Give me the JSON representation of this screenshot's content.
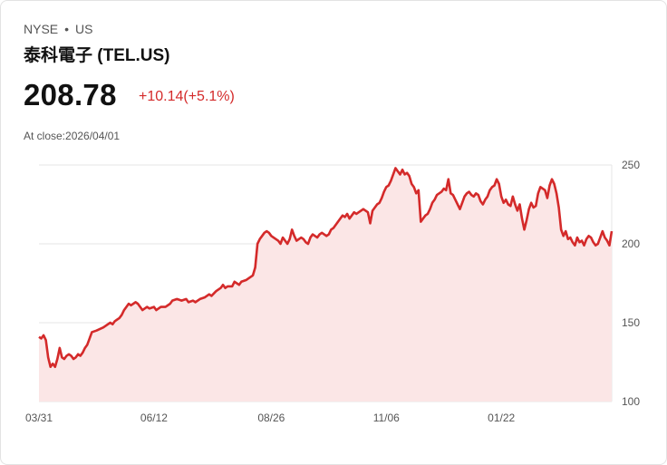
{
  "header": {
    "exchange": "NYSE",
    "separator": "•",
    "region": "US",
    "title": "泰科電子 (TEL.US)",
    "price": "208.78",
    "change": "+10.14(+5.1%)",
    "close_info": "At close:2026/04/01"
  },
  "colors": {
    "line": "#d42a2a",
    "fill": "#fbe6e6",
    "grid": "#e4e4e4",
    "text": "#111111",
    "muted": "#555555"
  },
  "chart_data": {
    "type": "area",
    "title": "泰科電子 (TEL.US)",
    "y_ticks": [
      100,
      150,
      200,
      250
    ],
    "ylim": [
      100,
      250
    ],
    "x_tick_labels": [
      {
        "label": "03/31",
        "index": 0
      },
      {
        "label": "06/12",
        "index": 50
      },
      {
        "label": "08/26",
        "index": 101
      },
      {
        "label": "11/06",
        "index": 151
      },
      {
        "label": "01/22",
        "index": 201
      }
    ],
    "x_count": 250,
    "series": [
      {
        "name": "TEL.US",
        "points": [
          [
            0,
            141
          ],
          [
            1,
            140
          ],
          [
            2,
            142
          ],
          [
            3,
            139
          ],
          [
            4,
            128
          ],
          [
            5,
            122
          ],
          [
            6,
            124
          ],
          [
            7,
            122
          ],
          [
            8,
            127
          ],
          [
            9,
            134
          ],
          [
            10,
            128
          ],
          [
            11,
            127
          ],
          [
            12,
            129
          ],
          [
            13,
            130
          ],
          [
            14,
            129
          ],
          [
            15,
            127
          ],
          [
            16,
            128
          ],
          [
            17,
            130
          ],
          [
            18,
            129
          ],
          [
            19,
            131
          ],
          [
            20,
            134
          ],
          [
            21,
            136
          ],
          [
            22,
            140
          ],
          [
            23,
            144
          ],
          [
            25,
            145
          ],
          [
            28,
            147
          ],
          [
            29,
            148
          ],
          [
            30,
            149
          ],
          [
            31,
            150
          ],
          [
            32,
            149
          ],
          [
            33,
            151
          ],
          [
            35,
            153
          ],
          [
            36,
            155
          ],
          [
            37,
            158
          ],
          [
            38,
            160
          ],
          [
            39,
            162
          ],
          [
            40,
            161
          ],
          [
            42,
            163
          ],
          [
            43,
            162
          ],
          [
            45,
            158
          ],
          [
            47,
            160
          ],
          [
            48,
            159
          ],
          [
            50,
            160
          ],
          [
            51,
            158
          ],
          [
            53,
            160
          ],
          [
            55,
            160
          ],
          [
            57,
            162
          ],
          [
            58,
            164
          ],
          [
            60,
            165
          ],
          [
            62,
            164
          ],
          [
            64,
            165
          ],
          [
            65,
            163
          ],
          [
            67,
            164
          ],
          [
            68,
            163
          ],
          [
            70,
            165
          ],
          [
            72,
            166
          ],
          [
            74,
            168
          ],
          [
            75,
            167
          ],
          [
            77,
            170
          ],
          [
            79,
            172
          ],
          [
            80,
            174
          ],
          [
            81,
            172
          ],
          [
            82,
            173
          ],
          [
            84,
            173
          ],
          [
            85,
            176
          ],
          [
            86,
            175
          ],
          [
            87,
            174
          ],
          [
            88,
            176
          ],
          [
            90,
            177
          ],
          [
            92,
            179
          ],
          [
            93,
            180
          ],
          [
            94,
            185
          ],
          [
            95,
            200
          ],
          [
            96,
            203
          ],
          [
            97,
            205
          ],
          [
            98,
            207
          ],
          [
            99,
            208
          ],
          [
            100,
            207
          ],
          [
            101,
            205
          ],
          [
            102,
            204
          ],
          [
            103,
            203
          ],
          [
            104,
            202
          ],
          [
            105,
            200
          ],
          [
            106,
            204
          ],
          [
            107,
            202
          ],
          [
            108,
            200
          ],
          [
            109,
            203
          ],
          [
            110,
            209
          ],
          [
            111,
            205
          ],
          [
            112,
            202
          ],
          [
            113,
            203
          ],
          [
            114,
            204
          ],
          [
            115,
            203
          ],
          [
            116,
            201
          ],
          [
            117,
            200
          ],
          [
            118,
            204
          ],
          [
            119,
            206
          ],
          [
            120,
            205
          ],
          [
            121,
            204
          ],
          [
            122,
            206
          ],
          [
            123,
            207
          ],
          [
            124,
            206
          ],
          [
            125,
            205
          ],
          [
            126,
            206
          ],
          [
            127,
            209
          ],
          [
            128,
            210
          ],
          [
            129,
            212
          ],
          [
            130,
            214
          ],
          [
            131,
            216
          ],
          [
            132,
            218
          ],
          [
            133,
            217
          ],
          [
            134,
            219
          ],
          [
            135,
            216
          ],
          [
            136,
            218
          ],
          [
            137,
            220
          ],
          [
            138,
            219
          ],
          [
            139,
            220
          ],
          [
            140,
            221
          ],
          [
            141,
            222
          ],
          [
            142,
            221
          ],
          [
            143,
            220
          ],
          [
            144,
            213
          ],
          [
            145,
            221
          ],
          [
            146,
            223
          ],
          [
            147,
            225
          ],
          [
            148,
            226
          ],
          [
            149,
            229
          ],
          [
            150,
            233
          ],
          [
            151,
            236
          ],
          [
            152,
            237
          ],
          [
            153,
            240
          ],
          [
            154,
            244
          ],
          [
            155,
            248
          ],
          [
            156,
            246
          ],
          [
            157,
            244
          ],
          [
            158,
            247
          ],
          [
            159,
            244
          ],
          [
            160,
            245
          ],
          [
            161,
            243
          ],
          [
            162,
            238
          ],
          [
            163,
            236
          ],
          [
            164,
            232
          ],
          [
            165,
            234
          ],
          [
            166,
            214
          ],
          [
            167,
            216
          ],
          [
            168,
            218
          ],
          [
            169,
            219
          ],
          [
            170,
            222
          ],
          [
            171,
            226
          ],
          [
            172,
            228
          ],
          [
            173,
            231
          ],
          [
            174,
            232
          ],
          [
            175,
            233
          ],
          [
            176,
            235
          ],
          [
            177,
            234
          ],
          [
            178,
            241
          ],
          [
            179,
            232
          ],
          [
            180,
            231
          ],
          [
            181,
            228
          ],
          [
            182,
            225
          ],
          [
            183,
            222
          ],
          [
            184,
            226
          ],
          [
            185,
            230
          ],
          [
            186,
            232
          ],
          [
            187,
            233
          ],
          [
            188,
            231
          ],
          [
            189,
            230
          ],
          [
            190,
            232
          ],
          [
            191,
            231
          ],
          [
            192,
            227
          ],
          [
            193,
            225
          ],
          [
            194,
            228
          ],
          [
            195,
            230
          ],
          [
            196,
            234
          ],
          [
            197,
            236
          ],
          [
            198,
            237
          ],
          [
            199,
            241
          ],
          [
            200,
            238
          ],
          [
            201,
            230
          ],
          [
            202,
            226
          ],
          [
            203,
            228
          ],
          [
            204,
            225
          ],
          [
            205,
            224
          ],
          [
            206,
            230
          ],
          [
            207,
            225
          ],
          [
            208,
            221
          ],
          [
            209,
            225
          ],
          [
            210,
            216
          ],
          [
            211,
            209
          ],
          [
            212,
            215
          ],
          [
            213,
            222
          ],
          [
            214,
            226
          ],
          [
            215,
            223
          ],
          [
            216,
            224
          ],
          [
            217,
            232
          ],
          [
            218,
            236
          ],
          [
            219,
            235
          ],
          [
            220,
            234
          ],
          [
            221,
            229
          ],
          [
            222,
            237
          ],
          [
            223,
            241
          ],
          [
            224,
            238
          ],
          [
            225,
            232
          ],
          [
            226,
            223
          ],
          [
            227,
            209
          ],
          [
            228,
            205
          ],
          [
            229,
            208
          ],
          [
            230,
            203
          ],
          [
            231,
            204
          ],
          [
            232,
            201
          ],
          [
            233,
            199
          ],
          [
            234,
            204
          ],
          [
            235,
            201
          ],
          [
            236,
            202
          ],
          [
            237,
            199
          ],
          [
            238,
            203
          ],
          [
            239,
            205
          ],
          [
            240,
            204
          ],
          [
            241,
            201
          ],
          [
            242,
            199
          ],
          [
            243,
            200
          ],
          [
            244,
            204
          ],
          [
            245,
            208
          ],
          [
            246,
            204
          ],
          [
            247,
            202
          ],
          [
            248,
            199
          ],
          [
            249,
            208
          ]
        ]
      }
    ]
  }
}
